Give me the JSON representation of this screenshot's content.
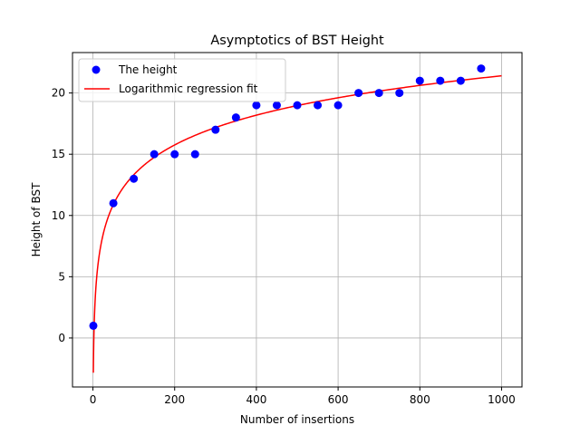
{
  "chart_data": {
    "type": "scatter",
    "title": "Asymptotics of BST Height",
    "xlabel": "Number of insertions",
    "ylabel": "Height of BST",
    "xlim": [
      -50,
      1050
    ],
    "ylim": [
      -4,
      23.3
    ],
    "xticks": [
      0,
      200,
      400,
      600,
      800,
      1000
    ],
    "yticks": [
      0,
      5,
      10,
      15,
      20
    ],
    "grid": true,
    "legend_position": "top-left",
    "series": [
      {
        "name": "The height",
        "kind": "scatter",
        "color": "#0000ff",
        "x": [
          1,
          50,
          100,
          150,
          200,
          250,
          300,
          350,
          400,
          450,
          500,
          550,
          600,
          650,
          700,
          750,
          800,
          850,
          900,
          950
        ],
        "y": [
          1,
          11,
          13,
          15,
          15,
          15,
          17,
          18,
          19,
          19,
          19,
          19,
          19,
          20,
          20,
          20,
          21,
          21,
          21,
          22
        ]
      },
      {
        "name": "Logarithmic regression fit",
        "kind": "line",
        "color": "#ff0000",
        "fit": {
          "a": -2.83,
          "b": 3.508
        },
        "x_range": [
          1,
          1000
        ]
      }
    ]
  }
}
